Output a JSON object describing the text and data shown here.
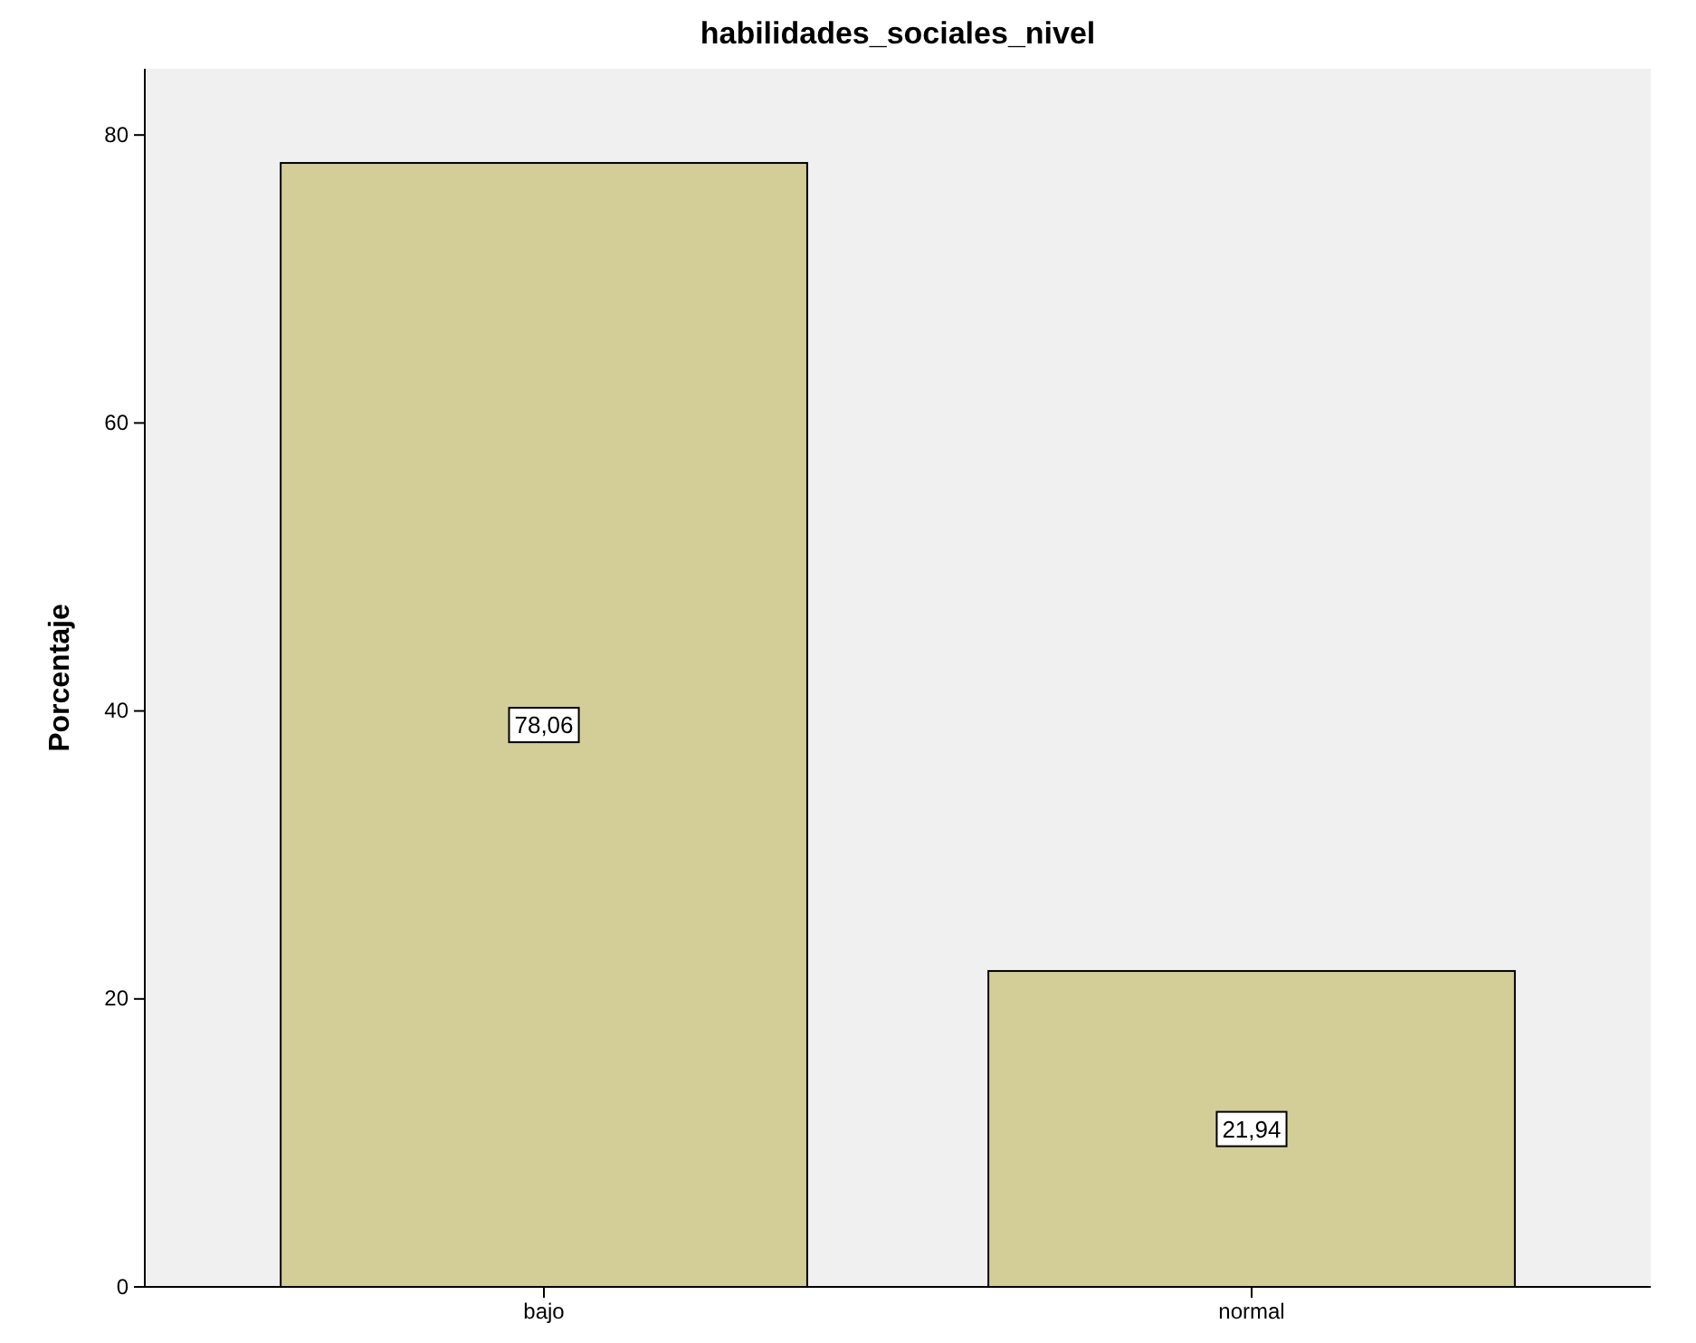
{
  "chart_data": {
    "type": "bar",
    "title": "habilidades_sociales_nivel",
    "ylabel": "Porcentaje",
    "categories": [
      "bajo",
      "normal"
    ],
    "values": [
      78.06,
      21.94
    ],
    "value_labels": [
      "78,06",
      "21,94"
    ],
    "color": "#d3ce98",
    "ylim": [
      0,
      84.6
    ],
    "yticks": [
      0,
      20,
      40,
      60,
      80
    ],
    "grid": false
  }
}
